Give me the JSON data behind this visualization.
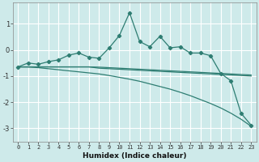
{
  "xlabel": "Humidex (Indice chaleur)",
  "bg_color": "#ceeaea",
  "grid_color": "#ffffff",
  "line_color": "#2e7d72",
  "xlim": [
    -0.5,
    23.5
  ],
  "ylim": [
    -3.5,
    1.8
  ],
  "yticks": [
    -3,
    -2,
    -1,
    0,
    1
  ],
  "xticks": [
    0,
    1,
    2,
    3,
    4,
    5,
    6,
    7,
    8,
    9,
    10,
    11,
    12,
    13,
    14,
    15,
    16,
    17,
    18,
    19,
    20,
    21,
    22,
    23
  ],
  "series_marked": [
    -0.65,
    -0.5,
    -0.55,
    -0.45,
    -0.38,
    -0.2,
    -0.12,
    -0.28,
    -0.32,
    0.08,
    0.55,
    1.42,
    0.32,
    0.12,
    0.52,
    0.08,
    0.12,
    -0.12,
    -0.12,
    -0.22,
    -0.9,
    -1.18,
    -2.42,
    -2.88
  ],
  "series_flat1": [
    -0.65,
    -0.65,
    -0.65,
    -0.65,
    -0.65,
    -0.65,
    -0.65,
    -0.65,
    -0.7,
    -0.72,
    -0.74,
    -0.76,
    -0.78,
    -0.8,
    -0.82,
    -0.84,
    -0.86,
    -0.88,
    -0.9,
    -0.92,
    -0.94,
    -0.96,
    -0.98,
    -1.0
  ],
  "series_flat2": [
    -0.65,
    -0.65,
    -0.65,
    -0.65,
    -0.65,
    -0.65,
    -0.65,
    -0.65,
    -0.66,
    -0.68,
    -0.7,
    -0.72,
    -0.74,
    -0.76,
    -0.78,
    -0.8,
    -0.82,
    -0.84,
    -0.86,
    -0.88,
    -0.9,
    -0.92,
    -0.94,
    -0.96
  ],
  "series_trend": [
    -0.65,
    -0.65,
    -0.68,
    -0.72,
    -0.76,
    -0.8,
    -0.84,
    -0.88,
    -0.92,
    -0.98,
    -1.05,
    -1.12,
    -1.2,
    -1.3,
    -1.4,
    -1.5,
    -1.62,
    -1.75,
    -1.9,
    -2.05,
    -2.22,
    -2.42,
    -2.65,
    -2.92
  ]
}
